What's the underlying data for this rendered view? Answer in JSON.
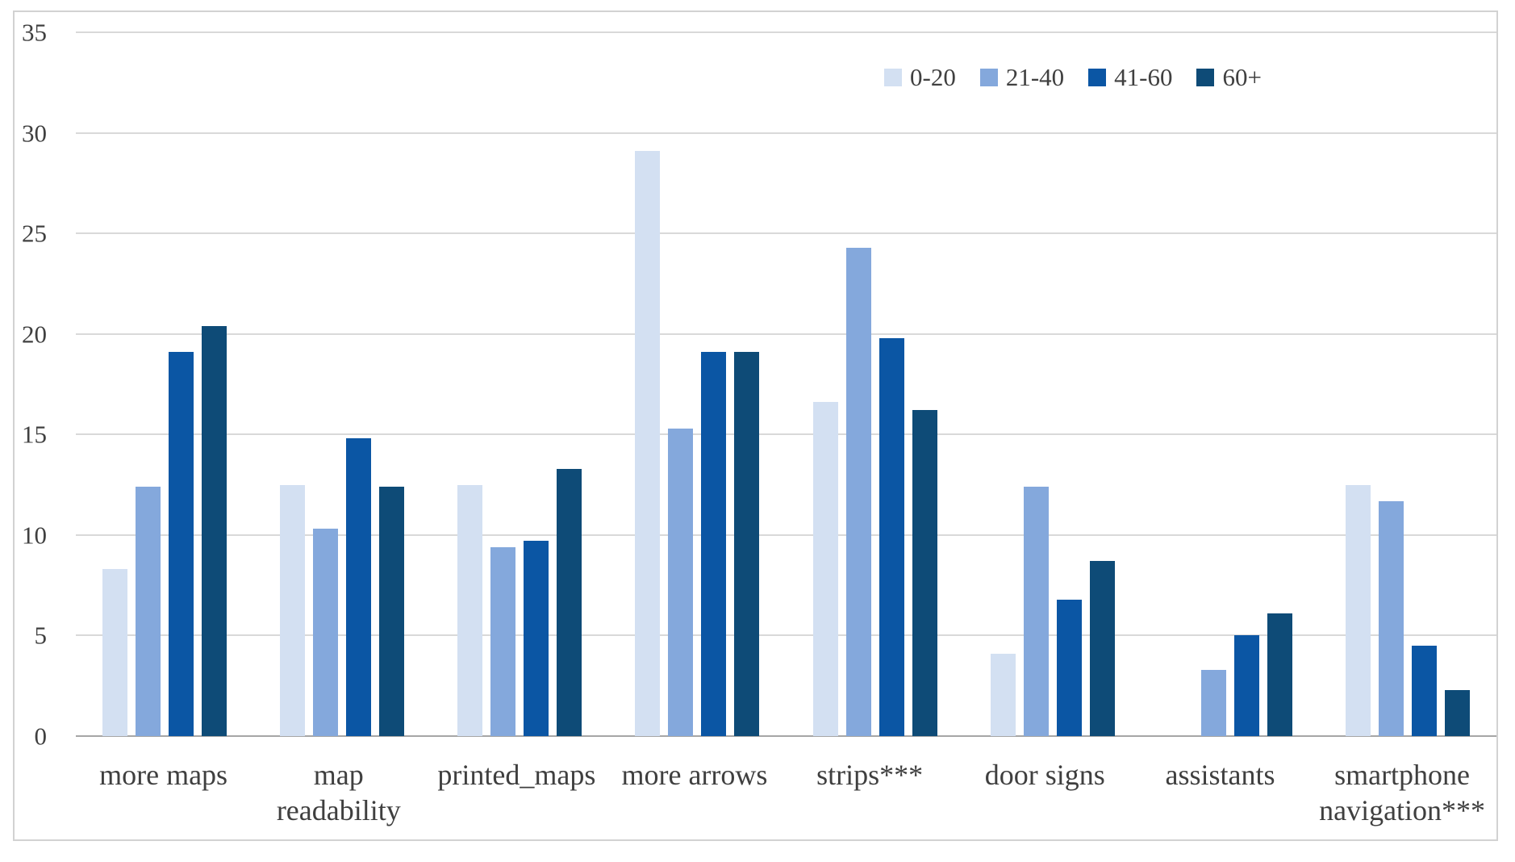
{
  "colors": {
    "background": "#ffffff",
    "figure_border": "#d2d2d2",
    "gridline": "#d9d9d9",
    "axis_line": "#a6a6a6",
    "text": "#404040"
  },
  "chart_data": {
    "type": "bar",
    "categories": [
      "more maps",
      "map readability",
      "printed_maps",
      "more arrows",
      "strips***",
      "door signs",
      "assistants",
      "smartphone navigation***"
    ],
    "series": [
      {
        "name": "0-20",
        "color": "#d3e0f2",
        "values": [
          8.3,
          12.5,
          12.5,
          29.1,
          16.6,
          4.1,
          0,
          12.5
        ]
      },
      {
        "name": "21-40",
        "color": "#84a8dc",
        "values": [
          12.4,
          10.3,
          9.4,
          15.3,
          24.3,
          12.4,
          3.3,
          11.7
        ]
      },
      {
        "name": "41-60",
        "color": "#0b56a4",
        "values": [
          19.1,
          14.8,
          9.7,
          19.1,
          19.8,
          6.8,
          5.0,
          4.5
        ]
      },
      {
        "name": "60+",
        "color": "#0e4b77",
        "values": [
          20.4,
          12.4,
          13.3,
          19.1,
          16.2,
          8.7,
          6.1,
          2.3
        ]
      }
    ],
    "title": "",
    "xlabel": "",
    "ylabel": "",
    "ylim": [
      0,
      35
    ],
    "yticks": [
      0,
      5,
      10,
      15,
      20,
      25,
      30,
      35
    ],
    "grid": true,
    "legend_position": "top-right"
  }
}
